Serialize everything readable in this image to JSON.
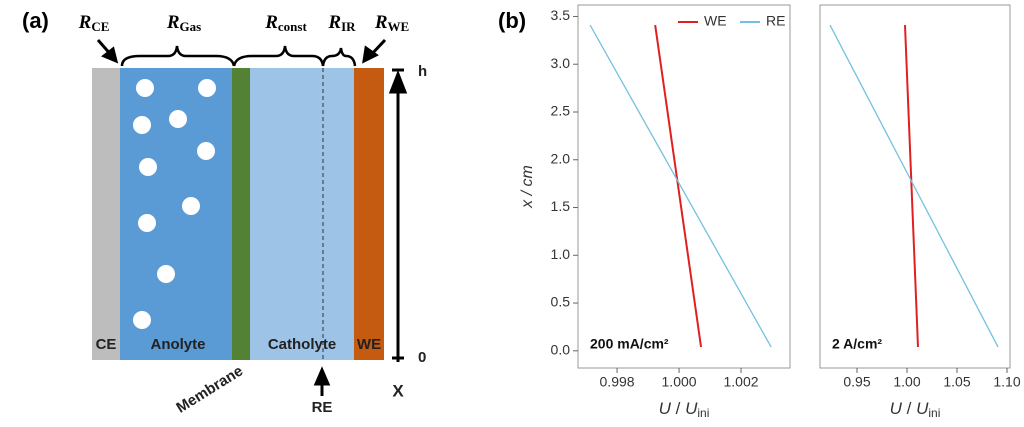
{
  "panel_labels": [
    "(a)",
    "(b)"
  ],
  "diagram": {
    "resistances": [
      {
        "symbol": "R",
        "subscript": "CE"
      },
      {
        "symbol": "R",
        "subscript": "Gas"
      },
      {
        "symbol": "R",
        "subscript": "const"
      },
      {
        "symbol": "R",
        "subscript": "IR"
      },
      {
        "symbol": "R",
        "subscript": "WE"
      }
    ],
    "regions": [
      "CE",
      "Anolyte",
      "Catholyte",
      "WE"
    ],
    "membrane": "Membrane",
    "reference": "RE",
    "axis": {
      "top": "h",
      "bottom": "0",
      "label": "X"
    }
  },
  "chart_data": [
    {
      "type": "line",
      "ylabel": "x / cm",
      "xlabel": [
        "U",
        " / ",
        "U",
        "ini"
      ],
      "annotation": "200 mA/cm²",
      "legend": "upper right",
      "xlim": [
        0.99674,
        1.00358
      ],
      "xticks": [
        0.998,
        {
          "value": 1,
          "label": "1.000"
        },
        1.002
      ],
      "ylim": [
        -0.18,
        3.62
      ],
      "yticks": [
        {
          "value": 0,
          "label": "0.0"
        },
        0.5,
        {
          "value": 1,
          "label": "1.0"
        },
        1.5,
        {
          "value": 2,
          "label": "2.0"
        },
        2.5,
        {
          "value": 3,
          "label": "3.0"
        },
        3.5
      ],
      "series": [
        {
          "name": "WE",
          "color": "#e02020",
          "x": [
            0.99923,
            1.00071
          ],
          "values": [
            3.41,
            0.04
          ]
        },
        {
          "name": "RE",
          "color": "#74c0e0",
          "x": [
            0.99713,
            1.00297
          ],
          "values": [
            3.41,
            0.04
          ]
        }
      ]
    },
    {
      "type": "line",
      "xlabel": [
        "U",
        " / ",
        "U",
        "ini"
      ],
      "annotation": "2 A/cm²",
      "xlim": [
        0.913,
        1.103
      ],
      "xticks": [
        0.95,
        {
          "value": 1,
          "label": "1.00"
        },
        1.05,
        {
          "value": 1.1,
          "label": "1.10"
        }
      ],
      "ylim": [
        -0.18,
        3.62
      ],
      "series": [
        {
          "name": "WE",
          "color": "#e02020",
          "x": [
            0.998,
            1.011
          ],
          "values": [
            3.41,
            0.04
          ]
        },
        {
          "name": "RE",
          "color": "#74c0e0",
          "x": [
            0.923,
            1.091
          ],
          "values": [
            3.41,
            0.04
          ]
        }
      ]
    }
  ]
}
